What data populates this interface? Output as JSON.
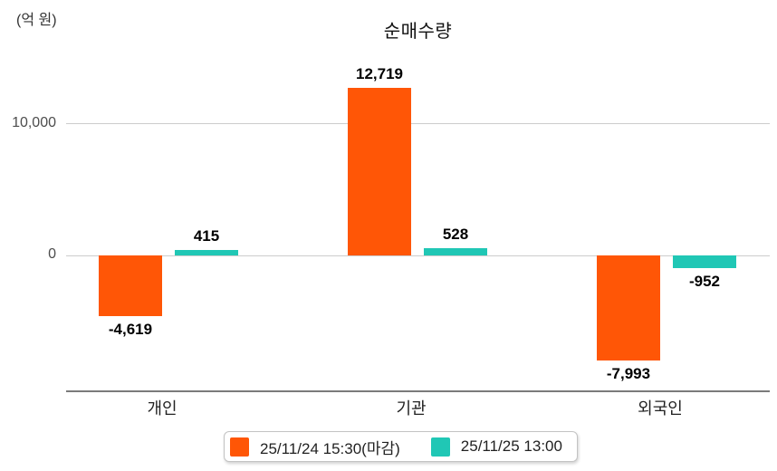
{
  "title": "순매수량",
  "chart_data": {
    "type": "bar",
    "title": "순매수량",
    "unit_label": "(억 원)",
    "categories": [
      "개인",
      "기관",
      "외국인"
    ],
    "series": [
      {
        "name": "25/11/24 15:30(마감)",
        "color": "#FF5606",
        "values": [
          -4619,
          12719,
          -7993
        ],
        "labels": [
          "-4,619",
          "12,719",
          "-7,993"
        ]
      },
      {
        "name": "25/11/25 13:00",
        "color": "#20C7B5",
        "values": [
          415,
          528,
          -952
        ],
        "labels": [
          "415",
          "528",
          "-952"
        ]
      }
    ],
    "y_ticks": [
      {
        "value": 10000,
        "label": "10,000"
      },
      {
        "value": 0,
        "label": "0"
      }
    ],
    "ylim": [
      -10250,
      13950
    ],
    "grid": true,
    "legend_position": "bottom"
  }
}
